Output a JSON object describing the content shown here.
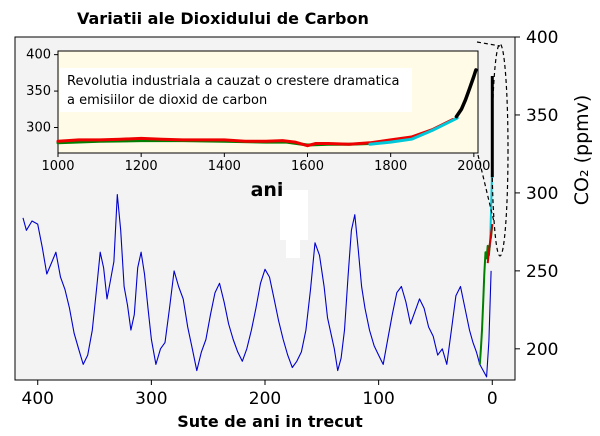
{
  "chart_data": [
    {
      "type": "line",
      "title": "Variatii ale Dioxidului de Carbon",
      "xlabel": "Sute de ani in trecut",
      "ylabel": "CO₂ (ppmv)",
      "xlim": [
        420,
        -20
      ],
      "ylim": [
        180,
        400
      ],
      "xticks": [
        "400",
        "300",
        "200",
        "100",
        "0"
      ],
      "yticks": [
        "200",
        "250",
        "300",
        "350",
        "400"
      ],
      "grid": false,
      "series": [
        {
          "color": "#0000cc",
          "x": [
            413,
            410,
            405,
            400,
            396,
            392,
            388,
            384,
            380,
            376,
            372,
            368,
            364,
            360,
            356,
            352,
            348,
            345,
            342,
            339,
            336,
            333,
            330,
            327,
            324,
            321,
            318,
            315,
            312,
            309,
            306,
            303,
            300,
            296,
            292,
            288,
            284,
            280,
            276,
            272,
            268,
            264,
            260,
            256,
            252,
            248,
            244,
            240,
            236,
            232,
            228,
            224,
            220,
            216,
            212,
            208,
            204,
            200,
            196,
            192,
            188,
            184,
            180,
            176,
            172,
            168,
            164,
            160,
            156,
            152,
            148,
            145,
            142,
            139,
            136,
            133,
            130,
            127,
            124,
            121,
            118,
            115,
            112,
            108,
            104,
            100,
            96,
            92,
            88,
            84,
            80,
            76,
            72,
            68,
            64,
            60,
            56,
            52,
            48,
            44,
            40,
            36,
            32,
            28,
            24,
            20,
            17,
            14,
            11,
            8,
            5,
            3,
            1
          ],
          "values": [
            284,
            276,
            282,
            280,
            265,
            248,
            255,
            262,
            246,
            238,
            226,
            210,
            200,
            190,
            196,
            212,
            240,
            262,
            252,
            232,
            244,
            256,
            299,
            276,
            240,
            228,
            212,
            222,
            252,
            262,
            248,
            226,
            206,
            190,
            200,
            204,
            226,
            250,
            240,
            232,
            214,
            200,
            186,
            198,
            206,
            222,
            236,
            242,
            230,
            216,
            206,
            198,
            192,
            200,
            212,
            226,
            242,
            251,
            246,
            232,
            218,
            206,
            196,
            188,
            192,
            198,
            212,
            238,
            268,
            260,
            240,
            220,
            210,
            200,
            186,
            194,
            212,
            246,
            276,
            286,
            264,
            240,
            226,
            212,
            202,
            196,
            190,
            206,
            222,
            236,
            240,
            230,
            216,
            224,
            232,
            226,
            214,
            208,
            196,
            200,
            190,
            212,
            234,
            240,
            226,
            212,
            204,
            198,
            190,
            186,
            182,
            205,
            250
          ]
        },
        {
          "color": "#008000",
          "x": [
            11,
            10,
            9,
            8,
            7,
            6,
            5,
            4,
            3,
            2,
            1,
            0
          ],
          "values": [
            190,
            200,
            212,
            230,
            248,
            262,
            258,
            266,
            260,
            268,
            272,
            280
          ]
        },
        {
          "color": "#00c8d8",
          "x": [
            2,
            1,
            0
          ],
          "values": [
            265,
            290,
            320
          ]
        },
        {
          "color": "#cc0000",
          "x": [
            4,
            3,
            2,
            1,
            0
          ],
          "values": [
            255,
            262,
            268,
            274,
            280
          ]
        },
        {
          "color": "#000000",
          "x": [
            0,
            0
          ],
          "values": [
            310,
            375
          ]
        }
      ]
    },
    {
      "type": "line",
      "annotation": "Revolutia industriala a cauzat o crestere dramatica a emisiilor de dioxid de carbon",
      "annotation_lines": [
        "Revolutia industriala a cauzat o crestere dramatica",
        "a emisiilor de dioxid de carbon"
      ],
      "xlabel": "ani",
      "xlim": [
        1000,
        2010
      ],
      "ylim": [
        265,
        405
      ],
      "xticks": [
        "1000",
        "1200",
        "1400",
        "1600",
        "1800",
        "2000"
      ],
      "yticks": [
        "300",
        "350",
        "400"
      ],
      "series": [
        {
          "color": "#008000",
          "x": [
            1000,
            1100,
            1200,
            1300,
            1400,
            1500,
            1550,
            1600,
            1650,
            1700,
            1750,
            1800
          ],
          "values": [
            279,
            281,
            282,
            282,
            281,
            280,
            280,
            276,
            277,
            277,
            278,
            282
          ]
        },
        {
          "color": "#ee0000",
          "x": [
            1000,
            1050,
            1100,
            1150,
            1200,
            1250,
            1300,
            1350,
            1400,
            1450,
            1500,
            1540,
            1570,
            1600,
            1620,
            1650,
            1700,
            1750,
            1800,
            1850,
            1900,
            1950
          ],
          "values": [
            281,
            283,
            283,
            284,
            285,
            284,
            283,
            283,
            283,
            281,
            281,
            282,
            280,
            275,
            278,
            278,
            277,
            279,
            283,
            287,
            297,
            311
          ]
        },
        {
          "color": "#00c8d8",
          "x": [
            1750,
            1800,
            1850,
            1900,
            1950,
            1960
          ],
          "values": [
            277,
            280,
            284,
            296,
            310,
            313
          ]
        },
        {
          "color": "#000000",
          "x": [
            1958,
            1970,
            1980,
            1990,
            2000,
            2005
          ],
          "values": [
            315,
            325,
            338,
            354,
            370,
            379
          ]
        }
      ]
    }
  ]
}
